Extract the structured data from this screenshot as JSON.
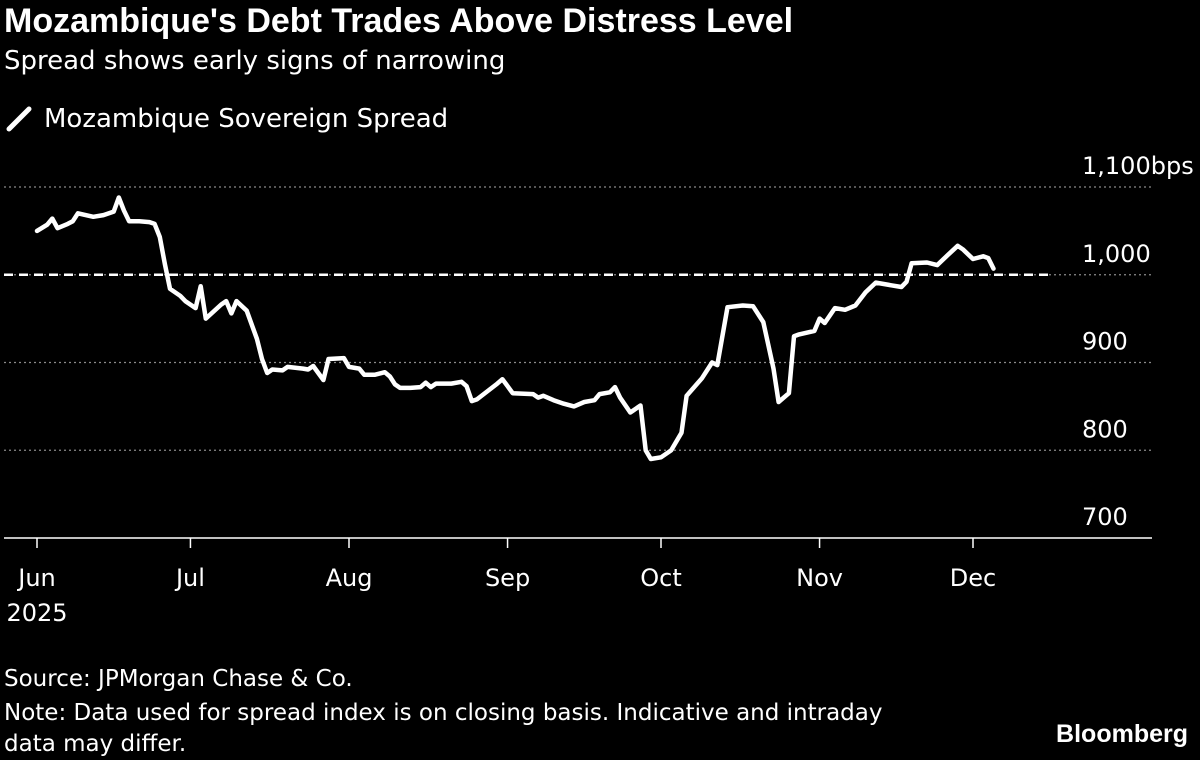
{
  "header": {
    "title": "Mozambique's Debt Trades Above Distress Level",
    "subtitle": "Spread shows early signs of narrowing"
  },
  "footer": {
    "source": "Source: JPMorgan Chase & Co.",
    "note": "Note: Data used for spread index is on closing basis. Indicative and intraday data may differ.",
    "brand": "Bloomberg"
  },
  "colors": {
    "background": "#000000",
    "line": "#ffffff",
    "grid": "#8a8a8a"
  },
  "chart_data": {
    "type": "line",
    "title": "Mozambique's Debt Trades Above Distress Level",
    "subtitle": "Spread shows early signs of narrowing",
    "legend": {
      "placement": "top-left",
      "entries": [
        "Mozambique Sovereign Spread"
      ]
    },
    "y_unit": "bps",
    "ylim": [
      700,
      1100
    ],
    "y_ticks": [
      {
        "value": 1100,
        "label": "1,100"
      },
      {
        "value": 1000,
        "label": "1,000"
      },
      {
        "value": 900,
        "label": "900"
      },
      {
        "value": 800,
        "label": "800"
      },
      {
        "value": 700,
        "label": "700"
      }
    ],
    "x_ticks": [
      {
        "date": "2025-06-01",
        "label": "Jun",
        "sublabel": "2025"
      },
      {
        "date": "2025-07-01",
        "label": "Jul"
      },
      {
        "date": "2025-08-01",
        "label": "Aug"
      },
      {
        "date": "2025-09-01",
        "label": "Sep"
      },
      {
        "date": "2025-10-01",
        "label": "Oct"
      },
      {
        "date": "2025-11-01",
        "label": "Nov"
      },
      {
        "date": "2025-12-01",
        "label": "Dec"
      }
    ],
    "xlim": [
      "2025-06-01",
      "2026-01-01"
    ],
    "reference_line": {
      "value": 1000,
      "style": "dashed"
    },
    "grid": "horizontal-dotted",
    "series": [
      {
        "name": "Mozambique Sovereign Spread",
        "points": [
          [
            "2025-06-01",
            1050
          ],
          [
            "2025-06-03",
            1057
          ],
          [
            "2025-06-04",
            1064
          ],
          [
            "2025-06-05",
            1053
          ],
          [
            "2025-06-07",
            1058
          ],
          [
            "2025-06-08",
            1061
          ],
          [
            "2025-06-09",
            1070
          ],
          [
            "2025-06-12",
            1066
          ],
          [
            "2025-06-14",
            1068
          ],
          [
            "2025-06-16",
            1072
          ],
          [
            "2025-06-17",
            1088
          ],
          [
            "2025-06-18",
            1073
          ],
          [
            "2025-06-19",
            1061
          ],
          [
            "2025-06-21",
            1061
          ],
          [
            "2025-06-23",
            1060
          ],
          [
            "2025-06-24",
            1058
          ],
          [
            "2025-06-25",
            1043
          ],
          [
            "2025-06-26",
            1012
          ],
          [
            "2025-06-27",
            984
          ],
          [
            "2025-06-29",
            976
          ],
          [
            "2025-06-30",
            970
          ],
          [
            "2025-07-02",
            962
          ],
          [
            "2025-07-03",
            987
          ],
          [
            "2025-07-04",
            950
          ],
          [
            "2025-07-07",
            966
          ],
          [
            "2025-07-08",
            970
          ],
          [
            "2025-07-09",
            956
          ],
          [
            "2025-07-10",
            970
          ],
          [
            "2025-07-12",
            959
          ],
          [
            "2025-07-14",
            927
          ],
          [
            "2025-07-15",
            904
          ],
          [
            "2025-07-16",
            888
          ],
          [
            "2025-07-17",
            892
          ],
          [
            "2025-07-19",
            891
          ],
          [
            "2025-07-20",
            895
          ],
          [
            "2025-07-23",
            893
          ],
          [
            "2025-07-24",
            892
          ],
          [
            "2025-07-25",
            896
          ],
          [
            "2025-07-27",
            880
          ],
          [
            "2025-07-28",
            904
          ],
          [
            "2025-07-31",
            905
          ],
          [
            "2025-08-01",
            895
          ],
          [
            "2025-08-03",
            893
          ],
          [
            "2025-08-04",
            886
          ],
          [
            "2025-08-06",
            886
          ],
          [
            "2025-08-08",
            889
          ],
          [
            "2025-08-09",
            884
          ],
          [
            "2025-08-10",
            875
          ],
          [
            "2025-08-11",
            871
          ],
          [
            "2025-08-13",
            871
          ],
          [
            "2025-08-15",
            872
          ],
          [
            "2025-08-16",
            877
          ],
          [
            "2025-08-17",
            872
          ],
          [
            "2025-08-18",
            876
          ],
          [
            "2025-08-21",
            876
          ],
          [
            "2025-08-23",
            878
          ],
          [
            "2025-08-24",
            873
          ],
          [
            "2025-08-25",
            856
          ],
          [
            "2025-08-26",
            858
          ],
          [
            "2025-08-28",
            867
          ],
          [
            "2025-08-30",
            876
          ],
          [
            "2025-08-31",
            881
          ],
          [
            "2025-09-01",
            873
          ],
          [
            "2025-09-02",
            865
          ],
          [
            "2025-09-06",
            864
          ],
          [
            "2025-09-07",
            860
          ],
          [
            "2025-09-08",
            862
          ],
          [
            "2025-09-10",
            857
          ],
          [
            "2025-09-12",
            853
          ],
          [
            "2025-09-14",
            850
          ],
          [
            "2025-09-16",
            855
          ],
          [
            "2025-09-18",
            857
          ],
          [
            "2025-09-19",
            864
          ],
          [
            "2025-09-21",
            866
          ],
          [
            "2025-09-22",
            872
          ],
          [
            "2025-09-23",
            860
          ],
          [
            "2025-09-25",
            843
          ],
          [
            "2025-09-27",
            851
          ],
          [
            "2025-09-28",
            800
          ],
          [
            "2025-09-29",
            790
          ],
          [
            "2025-10-01",
            792
          ],
          [
            "2025-10-02",
            796
          ],
          [
            "2025-10-03",
            800
          ],
          [
            "2025-10-05",
            820
          ],
          [
            "2025-10-06",
            862
          ],
          [
            "2025-10-09",
            882
          ],
          [
            "2025-10-11",
            900
          ],
          [
            "2025-10-12",
            897
          ],
          [
            "2025-10-14",
            963
          ],
          [
            "2025-10-17",
            965
          ],
          [
            "2025-10-19",
            964
          ],
          [
            "2025-10-21",
            946
          ],
          [
            "2025-10-23",
            893
          ],
          [
            "2025-10-24",
            855
          ],
          [
            "2025-10-26",
            865
          ],
          [
            "2025-10-27",
            930
          ],
          [
            "2025-10-28",
            932
          ],
          [
            "2025-10-31",
            936
          ],
          [
            "2025-11-01",
            950
          ],
          [
            "2025-11-02",
            945
          ],
          [
            "2025-11-04",
            962
          ],
          [
            "2025-11-06",
            960
          ],
          [
            "2025-11-08",
            965
          ],
          [
            "2025-11-10",
            980
          ],
          [
            "2025-11-12",
            991
          ],
          [
            "2025-11-15",
            988
          ],
          [
            "2025-11-17",
            986
          ],
          [
            "2025-11-18",
            992
          ],
          [
            "2025-11-19",
            1013
          ],
          [
            "2025-11-22",
            1014
          ],
          [
            "2025-11-24",
            1011
          ],
          [
            "2025-11-26",
            1022
          ],
          [
            "2025-11-28",
            1033
          ],
          [
            "2025-11-29",
            1029
          ],
          [
            "2025-12-01",
            1018
          ],
          [
            "2025-12-03",
            1021
          ],
          [
            "2025-12-04",
            1019
          ],
          [
            "2025-12-05",
            1007
          ]
        ]
      }
    ]
  }
}
